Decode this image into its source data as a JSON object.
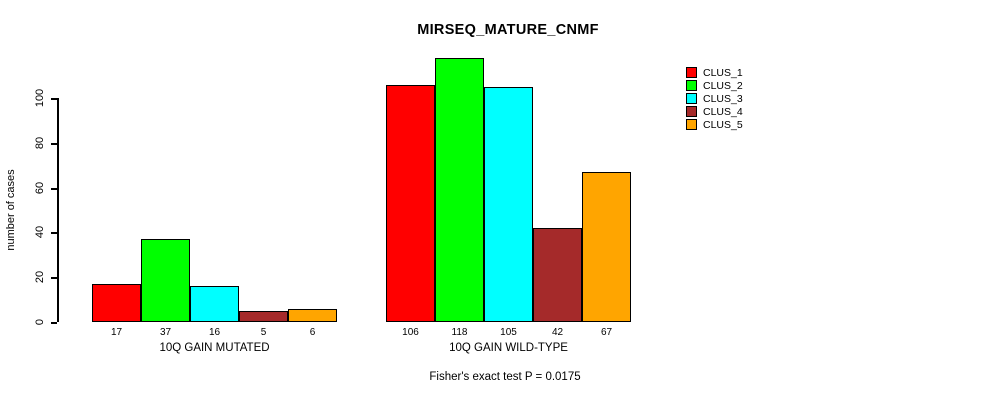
{
  "chart_data": {
    "type": "bar",
    "title": "MIRSEQ_MATURE_CNMF",
    "ylabel": "number of cases",
    "xlabel": "",
    "yticks": [
      0,
      20,
      40,
      60,
      80,
      100
    ],
    "ylim": [
      0,
      100
    ],
    "grid": false,
    "legend_position": "right-outside-top",
    "bar_value_labels_shown": true,
    "groups": [
      {
        "label": "10Q GAIN MUTATED",
        "values": [
          17,
          37,
          16,
          5,
          6
        ]
      },
      {
        "label": "10Q GAIN WILD-TYPE",
        "values": [
          106,
          118,
          105,
          42,
          67
        ]
      }
    ],
    "series": [
      {
        "name": "CLUS_1",
        "color": "#FF0000"
      },
      {
        "name": "CLUS_2",
        "color": "#00FF00"
      },
      {
        "name": "CLUS_3",
        "color": "#00FFFF"
      },
      {
        "name": "CLUS_4",
        "color": "#A52A2A"
      },
      {
        "name": "CLUS_5",
        "color": "#FFA500"
      }
    ],
    "annotation": "Fisher's exact test P = 0.0175"
  }
}
